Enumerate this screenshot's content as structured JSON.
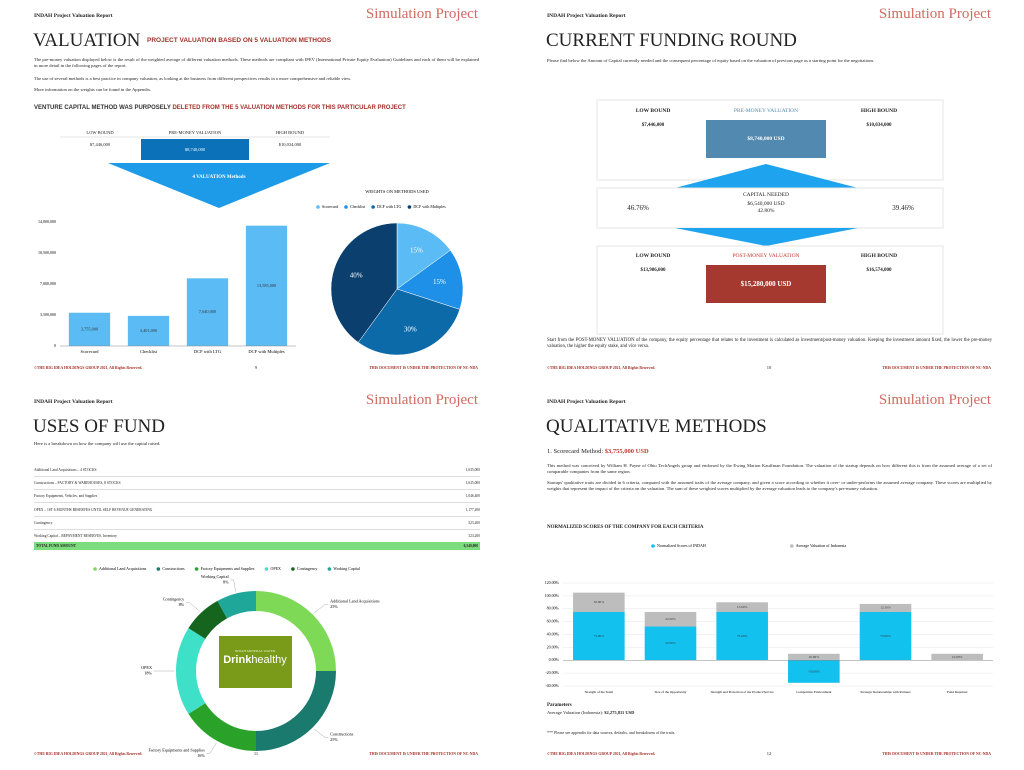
{
  "pages": [
    {
      "header": {
        "left": "INDAH Project Valuation Report",
        "right": "Simulation Project"
      },
      "title": "VALUATION",
      "subtitle": "PROJECT VALUATION BASED ON 5 VALUATION METHODS",
      "paragraphs": [
        "The pre-money valuation displayed below is the result of the weighted average of different valuation methods. These methods are compliant with IPEV (International Private Equity Evaluation) Guidelines and each of them will be explained in more detail in the following pages of the report.",
        "The use of several methods is a best practice in company valuation, as looking at the business from different perspectives results in a more comprehensive and reliable view.",
        "More information on the weights can be found in the Appendix."
      ],
      "note": {
        "prefix": "VENTURE CAPITAL METHOD WAS PURPOSELY",
        "highlight": "DELETED FROM THE 5 VALUATION METHODS FOR THIS PARTICULAR PROJECT"
      },
      "table": {
        "headers": [
          "LOW BOUND",
          "PRE-MONEY VALUATION",
          "HIGH BOUND"
        ],
        "values": [
          "$7,446,000",
          "$8,740,000",
          "$10,034,000"
        ]
      },
      "arrow_label": "4 VALUATION Methods",
      "footer": {
        "left": "©THE BIG IDEA HOLDINGS GROUP 2021, All Rights Reserved.",
        "page": "9",
        "right": "THIS DOCUMENT IS UNDER THE PROTECTION OF NC-NDA"
      }
    },
    {
      "header": {
        "left": "INDAH Project Valuation Report",
        "right": "Simulation Project"
      },
      "title": "CURRENT FUNDING ROUND",
      "paragraph": "Please find below the Amount of Capital currently needed and the consequent percentage of equity based on the valuation of previous page as a starting point for the negotiations.",
      "pre": {
        "low_label": "LOW BOUND",
        "low_value": "$7,446,000",
        "label": "PRE-MONEY VALUATION",
        "value": "$8,740,000 USD",
        "high_label": "HIGH BOUND",
        "high_value": "$10,034,000"
      },
      "capital": {
        "label": "CAPITAL NEEDED",
        "value": "$6,540,000 USD",
        "pct": "42.80%",
        "left_pct": "46.76%",
        "right_pct": "39.46%"
      },
      "post": {
        "low_label": "LOW BOUND",
        "low_value": "$13,986,000",
        "label": "POST-MONEY VALUATION",
        "value": "$15,280,000 USD",
        "high_label": "HIGH BOUND",
        "high_value": "$16,574,000"
      },
      "paragraph2": "Start from the POST-MONEY VALUATION of the company, the equity percentage that relates to the investment is calculated as investment/post-money valuation. Keeping the investment amount fixed, the lower the pre-money valuation, the higher the equity stake, and vice versa.",
      "footer": {
        "left": "©THE BIG IDEA HOLDINGS GROUP 2021, All Rights Reserved.",
        "page": "10",
        "right": "THIS DOCUMENT IS UNDER THE PROTECTION OF NC-NDA"
      }
    },
    {
      "header": {
        "left": "INDAH Project Valuation Report",
        "right": "Simulation Project"
      },
      "title": "USES OF FUND",
      "intro": "Here is a breakdown on how the company will use the capital raised.",
      "table": {
        "rows": [
          [
            "Additional Land Acquisitions – 4 STOCKS",
            "1,635,000"
          ],
          [
            "Constructions – FACTORY & WAREHOUSES, 8 STOCKS",
            "1,635,000"
          ],
          [
            "Factory Equipments, Vehicles, and Supplies",
            "1,046,400"
          ],
          [
            "OPEX – 1ST 6 MONTHS RESERVES UNTIL SELF REVENUE GENERATING",
            "1,177,200"
          ],
          [
            "Contingency",
            "523,200"
          ],
          [
            "Working Capital – REPAYMENT RESERVES, Inventory",
            "523,200"
          ]
        ],
        "total": [
          "TOTAL FUND AMOUNT",
          "6,540,000"
        ]
      },
      "logo": {
        "small": "INDAH MINERAL WATER",
        "bold": "Drink",
        "light": "healthy"
      },
      "footer": {
        "left": "©THE BIG IDEA HOLDINGS GROUP 2021, All Rights Reserved.",
        "page": "11",
        "right": "THIS DOCUMENT IS UNDER THE PROTECTION OF NC-NDA"
      }
    },
    {
      "header": {
        "left": "INDAH Project Valuation Report",
        "right": "Simulation Project"
      },
      "title": "QUALITATIVE METHODS",
      "method_label": "1. Scorecard Method:",
      "method_value": "$3,755,000 USD",
      "paragraphs": [
        "This method was conceived by William H. Payne of Ohio TechAngels group and endorsed by the Ewing Marion Kauffman Foundation. The valuation of the startup depends on how different this is from the assumed average of a set of comparable companies from the same region.",
        "Startups' qualitative traits are divided in 6 criteria, compared with the assumed traits of the average company, and given a score according to whether it over- or under-performs the assumed average company. These scores are multiplied by weights that represent the impact of the criteria on the valuation. The sum of these weighted scores multiplied by the average valuation leads to the company's pre-money valuation."
      ],
      "params_title": "Parameters",
      "params_label": "Average Valuation (Indonesia):",
      "params_value": "$2,275,811 USD",
      "note": "*** Please see appendix for data sources, defaults, and breakdowns of the traits.",
      "footer": {
        "left": "©THE BIG IDEA HOLDINGS GROUP 2021, All Rights Reserved.",
        "page": "12",
        "right": "THIS DOCUMENT IS UNDER THE PROTECTION OF NC-NDA"
      }
    }
  ],
  "chart_data": [
    {
      "type": "bar",
      "categories": [
        "Scorecard",
        "Checklist",
        "DCF with LTG",
        "DCF with Multiples"
      ],
      "values": [
        3755000,
        3401000,
        7640000,
        13585000
      ],
      "value_labels": [
        "3,755,000",
        "3,401,000",
        "7,640,000",
        "13,585,000"
      ],
      "color": "#5bbcf5",
      "ylim": [
        0,
        14000000
      ],
      "yticks": [
        0,
        {
          "value": 3500000,
          "label": "3,500,000"
        },
        {
          "value": 7000000,
          "label": "7,000,000"
        },
        {
          "value": 10500000,
          "label": "10,500,000"
        },
        {
          "value": 14000000,
          "label": "14,000,000"
        }
      ],
      "grid": false
    },
    {
      "type": "pie",
      "title": "WEIGHTS ON METHODS USED",
      "categories": [
        "Scorecard",
        "Checklist",
        "DCF with LTG",
        "DCF with Multiples"
      ],
      "values": [
        15,
        15,
        30,
        40
      ],
      "value_labels": [
        "15%",
        "15%",
        "30%",
        "40%"
      ],
      "colors": [
        "#5bbcf5",
        "#1e90e8",
        "#0d6aa8",
        "#0b3f6e"
      ],
      "legend": "top"
    },
    {
      "type": "donut",
      "categories": [
        "Additional Land Acquisitions",
        "Constructions",
        "Factory Equipments and Supplies",
        "OPEX",
        "Contingency",
        "Working Capital"
      ],
      "values": [
        25,
        25,
        16,
        18,
        8,
        8
      ],
      "value_labels": [
        "25%",
        "25%",
        "16%",
        "18%",
        "8%",
        "8%"
      ],
      "colors": [
        "#7ed957",
        "#1b7a6e",
        "#2aa22a",
        "#3ee0c8",
        "#16651e",
        "#1fa89a"
      ],
      "legend": "top"
    },
    {
      "type": "stacked_bar",
      "title": "NORMALIZED SCORES OF THE COMPANY FOR EACH CRITERIA",
      "categories": [
        "Strength of the Team",
        "Size of the Opportunity",
        "Strength and Protection of the Product/Service",
        "Competitive Environment",
        "Strategic Relationships with Partners",
        "Fund Required"
      ],
      "series": [
        {
          "name": "Normalized Scores of INDAH",
          "color": "#13c1ef",
          "values": [
            75,
            52.5,
            75,
            -35,
            75,
            0
          ],
          "value_labels": [
            "75.00%",
            "52.50%",
            "75.00%",
            "-35.00%",
            "75.00%",
            null
          ]
        },
        {
          "name": "Average Valuation of Indonesia",
          "color": "#bdbdbd",
          "values": [
            30,
            22.5,
            15,
            10,
            12.5,
            10
          ],
          "value_labels": [
            "30.00%",
            "22.50%",
            "15.00%",
            "10.00%",
            "12.50%",
            "10.00%"
          ]
        }
      ],
      "ylim": [
        -40,
        120
      ],
      "yticks": [
        {
          "value": -40,
          "label": "-40.00%"
        },
        {
          "value": -20,
          "label": "-20.00%"
        },
        {
          "value": 0,
          "label": "0.00%"
        },
        {
          "value": 20,
          "label": "20.00%"
        },
        {
          "value": 40,
          "label": "40.00%"
        },
        {
          "value": 60,
          "label": "60.00%"
        },
        {
          "value": 80,
          "label": "80.00%"
        },
        {
          "value": 100,
          "label": "100.00%"
        },
        {
          "value": 120,
          "label": "120.00%"
        }
      ],
      "grid": true,
      "legend": "top"
    }
  ]
}
